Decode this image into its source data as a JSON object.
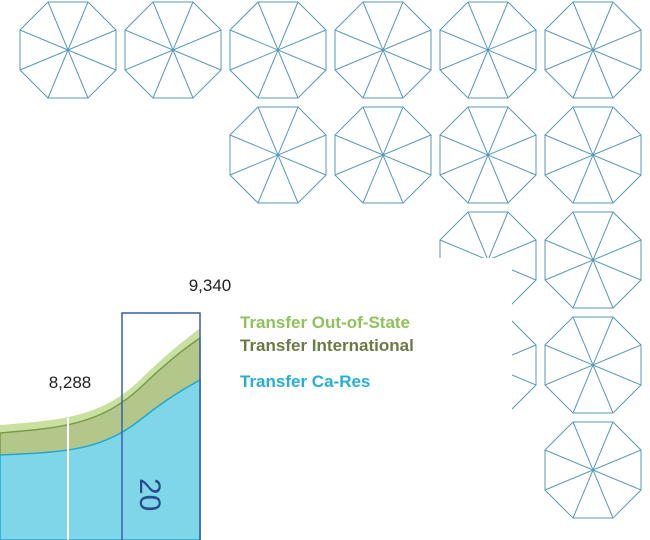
{
  "value_labels": [
    "9,340",
    "8,288"
  ],
  "legend": [
    "Transfer Out-of-State",
    "Transfer International",
    "Transfer Ca-Res"
  ],
  "year_label": "20"
}
